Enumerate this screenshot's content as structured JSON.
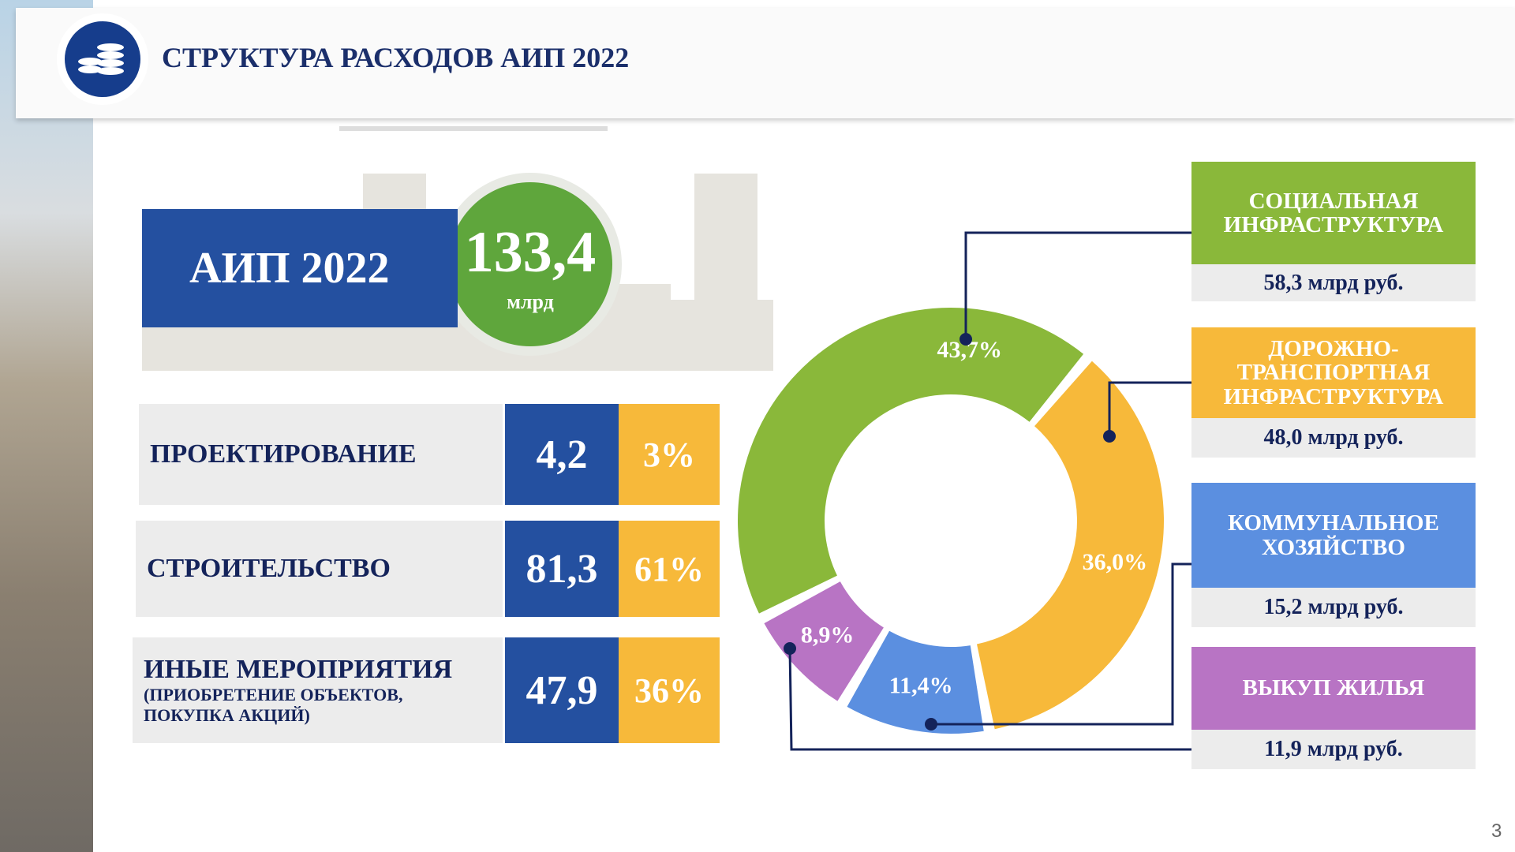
{
  "header": {
    "title": "СТРУКТУРА РАСХОДОВ АИП 2022"
  },
  "summary": {
    "label": "АИП 2022",
    "amount": "133,4",
    "unit": "млрд"
  },
  "table": {
    "rows": [
      {
        "label": "ПРОЕКТИРОВАНИЕ",
        "value": "4,2",
        "share": "3%"
      },
      {
        "label": "СТРОИТЕЛЬСТВО",
        "value": "81,3",
        "share": "61%"
      },
      {
        "label": "ИНЫЕ МЕРОПРИЯТИЯ",
        "sublabel": "(ПРИОБРЕТЕНИЕ ОБЪЕКТОВ, ПОКУПКА АКЦИЙ)",
        "value": "47,9",
        "share": "36%"
      }
    ]
  },
  "chart_data": {
    "type": "donut",
    "categories": [
      "СОЦИАЛЬНАЯ ИНФРАСТРУКТУРА",
      "ДОРОЖНО-ТРАНСПОРТНАЯ ИНФРАСТРУКТУРА",
      "КОММУНАЛЬНОЕ ХОЗЯЙСТВО",
      "ВЫКУП ЖИЛЬЯ"
    ],
    "values": [
      43.7,
      36.0,
      11.4,
      8.9
    ],
    "value_labels": [
      "43,7%",
      "36,0%",
      "11,4%",
      "8,9%"
    ],
    "amounts": [
      "58,3 млрд руб.",
      "48,0 млрд руб.",
      "15,2 млрд руб.",
      "11,9 млрд руб."
    ],
    "colors": [
      "#8ab83a",
      "#f7b93a",
      "#5b8fe0",
      "#b874c4"
    ]
  },
  "page_number": "3"
}
